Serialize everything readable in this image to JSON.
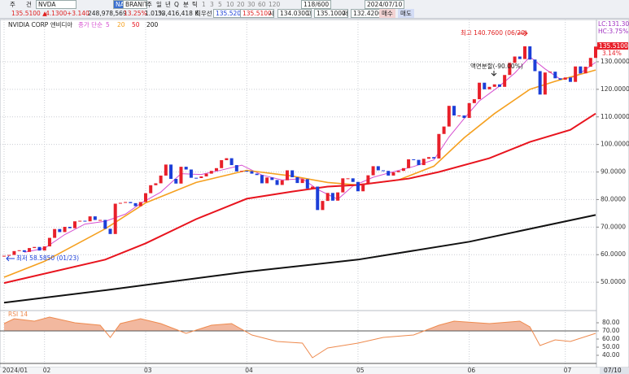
{
  "toolbar": {
    "row1": [
      "주",
      "건",
      "NVDA",
      "NA",
      "BRANITESHARES E",
      "주",
      "일",
      "년",
      "Q",
      "분",
      "틱",
      "1",
      "3",
      "5",
      "10",
      "20",
      "30",
      "60",
      "120",
      "118/600",
      "2024/07/10"
    ],
    "row2": [
      "135.5100 ▲",
      "4.1300",
      "+3.140",
      "248,978,569",
      "13.25%",
      "1.01%",
      "33,416,418 K",
      "최우선",
      "135.5200",
      "135.5100",
      "시",
      "134.0300",
      "고",
      "135.1000",
      "저",
      "132.4200",
      "매수",
      "매도"
    ]
  },
  "axis_labels": {
    "lc": "LC:131.30",
    "hc": "HC:3.75%",
    "last_price": "135.5100",
    "last_change": "3.14%",
    "cursor_date": "07/10"
  },
  "chart_data": [
    {
      "type": "candlestick",
      "title": "NVIDIA CORP 엔비디아",
      "ma_label": "종가 단순",
      "categories": [
        "2024/01",
        null,
        null,
        null,
        null,
        null,
        null,
        null,
        "02",
        null,
        null,
        null,
        null,
        null,
        null,
        null,
        null,
        null,
        null,
        null,
        null,
        null,
        null,
        null,
        null,
        null,
        null,
        null,
        "03",
        null,
        null,
        null,
        null,
        null,
        null,
        null,
        null,
        null,
        null,
        null,
        null,
        null,
        null,
        null,
        null,
        null,
        null,
        null,
        "04",
        null,
        null,
        null,
        null,
        null,
        null,
        null,
        null,
        null,
        null,
        null,
        null,
        null,
        null,
        null,
        null,
        null,
        null,
        null,
        null,
        null,
        "05",
        null,
        null,
        null,
        null,
        null,
        null,
        null,
        null,
        null,
        null,
        null,
        null,
        null,
        null,
        null,
        null,
        null,
        null,
        null,
        null,
        null,
        "06",
        null,
        null,
        null,
        null,
        null,
        null,
        null,
        null,
        null,
        null,
        null,
        null,
        null,
        null,
        null,
        null,
        null,
        null,
        "07",
        null,
        null,
        null,
        null,
        null,
        null
      ],
      "close": [
        59.6,
        59.9,
        61.3,
        61.6,
        61.0,
        62.4,
        62.8,
        61.5,
        63.0,
        66.1,
        69.3,
        68.2,
        70.1,
        69.6,
        72.1,
        72.3,
        72.1,
        73.9,
        72.6,
        72.6,
        69.4,
        67.5,
        78.5,
        78.8,
        79.1,
        78.7,
        77.6,
        79.1,
        82.3,
        85.2,
        85.9,
        88.7,
        92.7,
        87.5,
        85.8,
        91.9,
        90.9,
        87.9,
        87.8,
        88.4,
        89.4,
        90.4,
        91.4,
        94.3,
        95.0,
        92.5,
        90.2,
        90.4,
        90.3,
        89.4,
        88.9,
        85.9,
        88.0,
        87.1,
        85.3,
        87.0,
        90.6,
        88.1,
        86.0,
        87.4,
        84.0,
        84.7,
        76.2,
        79.5,
        82.4,
        79.6,
        82.6,
        87.7,
        87.7,
        86.4,
        83.0,
        85.8,
        88.8,
        92.1,
        90.6,
        90.4,
        88.7,
        89.9,
        90.4,
        91.4,
        94.6,
        94.4,
        92.5,
        94.8,
        95.4,
        94.9,
        103.8,
        106.5,
        114.0,
        110.5,
        110.5,
        109.6,
        115.0,
        116.4,
        122.4,
        120.0,
        120.9,
        121.8,
        120.9,
        125.2,
        129.6,
        131.9,
        131.0,
        135.6,
        130.8,
        126.6,
        118.1,
        126.1,
        126.4,
        124.0,
        123.5,
        124.3,
        122.7,
        128.3,
        125.8,
        128.2,
        131.4,
        135.51
      ],
      "up_color": "#e8202a",
      "down_color": "#1c3fd8",
      "series": [
        {
          "name": "5",
          "color": "#d64fd0",
          "x": [
            4,
            8,
            12,
            16,
            20,
            24,
            27,
            31,
            35,
            39,
            43,
            47,
            51,
            55,
            59,
            62,
            66,
            69,
            73,
            77,
            81,
            85,
            88,
            91,
            94,
            98,
            101,
            104,
            107,
            110,
            113,
            117
          ],
          "values": [
            60.9,
            62.3,
            67.3,
            71.1,
            72.1,
            74.7,
            78.6,
            82.7,
            89.4,
            89.1,
            90.7,
            92.5,
            88.9,
            87.1,
            87.6,
            83.7,
            80.1,
            84.9,
            88.1,
            90.1,
            92.0,
            94.4,
            102.7,
            109.4,
            115.8,
            121.2,
            125.9,
            131.8,
            127.4,
            123.7,
            124.6,
            129.8
          ]
        },
        {
          "name": "20",
          "color": "#f5a01f",
          "x": [
            0,
            8,
            20,
            28,
            38,
            48,
            57,
            64,
            70,
            78,
            85,
            91,
            97,
            104,
            109,
            117
          ],
          "values": [
            51.8,
            57.6,
            69.4,
            78.8,
            86.2,
            90.6,
            88.5,
            86.2,
            85.3,
            87.1,
            92.1,
            102.4,
            111.2,
            120,
            122.9,
            127
          ]
        },
        {
          "name": "50",
          "color": "#e8141e",
          "x": [
            0,
            20,
            28,
            38,
            48,
            57,
            64,
            70,
            80,
            86,
            96,
            104,
            112,
            117
          ],
          "values": [
            49.7,
            58.2,
            64.1,
            72.9,
            80.3,
            82.9,
            84.7,
            85.3,
            87.6,
            90,
            95,
            100.9,
            105.3,
            111.2
          ]
        },
        {
          "name": "200",
          "color": "#111111",
          "x": [
            0,
            20,
            48,
            70,
            92,
            117
          ],
          "values": [
            42.6,
            47.1,
            53.8,
            58.2,
            64.7,
            74.4
          ]
        }
      ],
      "annotations": [
        "최고 140.7600 (06/20)",
        "액면분할(-90.00%)",
        "최저 58.5850 (01/23)"
      ],
      "ylim": [
        40.3,
        141.2
      ],
      "yticks": [
        {
          "value": 50,
          "label": "50.0000"
        },
        {
          "value": 60,
          "label": "60.0000"
        },
        {
          "value": 70,
          "label": "70.0000"
        },
        {
          "value": 80,
          "label": "80.0000"
        },
        {
          "value": 90,
          "label": "90.0000"
        },
        {
          "value": 100,
          "label": "100.0000"
        },
        {
          "value": 110,
          "label": "110.0000"
        },
        {
          "value": 120,
          "label": "120.0000"
        },
        {
          "value": 130,
          "label": "130.0000"
        }
      ],
      "grid": true
    },
    {
      "type": "line",
      "title": "RSI 14",
      "color": "#ee8a4e",
      "fill_color": "#f2b89f",
      "x": [
        0,
        2,
        6,
        9,
        14,
        19,
        21,
        23,
        27,
        31,
        36,
        41,
        45,
        49,
        54,
        59,
        61,
        64,
        67,
        70,
        75,
        81,
        86,
        89,
        96,
        102,
        104,
        106,
        109,
        112,
        117
      ],
      "values": [
        79,
        85,
        82,
        87,
        80,
        77,
        62,
        79,
        85,
        79,
        67,
        77,
        79,
        65,
        57,
        55,
        37,
        49,
        52,
        55,
        62,
        65,
        77,
        82,
        79,
        82,
        75,
        52,
        59,
        57,
        67
      ],
      "bands": [
        70,
        30
      ],
      "fill_above": 70,
      "ylim": [
        25,
        94
      ],
      "yticks": [
        {
          "value": 40,
          "label": "40.00"
        },
        {
          "value": 50,
          "label": "50.00"
        },
        {
          "value": 60,
          "label": "60.00"
        },
        {
          "value": 70,
          "label": "70.00"
        },
        {
          "value": 80,
          "label": "80.00"
        }
      ]
    }
  ]
}
